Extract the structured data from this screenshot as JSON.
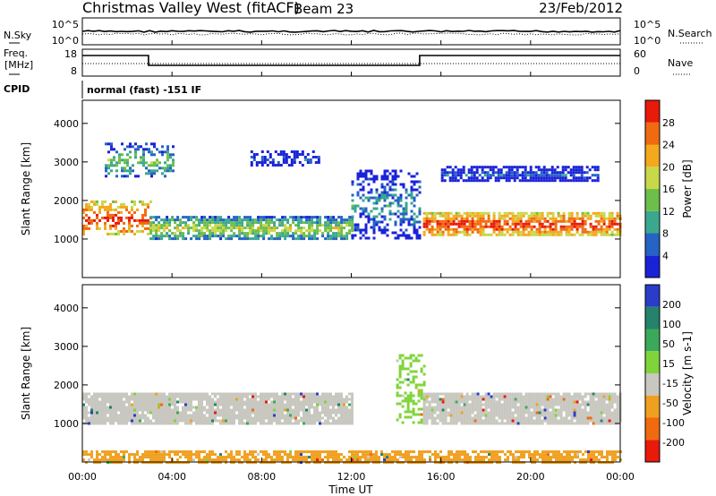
{
  "header": {
    "site": "Christmas Valley West (fitACF)",
    "beam": "Beam 23",
    "date": "23/Feb/2012"
  },
  "top_panels": {
    "noise": {
      "left_label": "N.Sky",
      "right_label": "N.Search",
      "left_ticks": [
        "10^5",
        "10^0"
      ],
      "right_ticks": [
        "10^5",
        "10^0"
      ]
    },
    "freq": {
      "left_label_1": "Freq.",
      "left_label_2": "[MHz]",
      "right_label": "Nave",
      "left_ticks": [
        "18",
        "8"
      ],
      "right_ticks": [
        "60",
        "0"
      ]
    },
    "cpid": {
      "label": "CPID",
      "text": "normal (fast) -151 IF"
    }
  },
  "chart_data": [
    {
      "type": "heatmap",
      "name": "power",
      "ylabel": "Slant Range [km]",
      "ylim": [
        0,
        4600
      ],
      "yticks": [
        "1000",
        "2000",
        "3000",
        "4000"
      ],
      "xlim": [
        "00:00",
        "24:00"
      ],
      "colorbar_label": "Power [dB]",
      "colorbar_ticks": [
        "4",
        "8",
        "12",
        "16",
        "20",
        "24",
        "28"
      ],
      "color_scale": [
        "#1a22d8",
        "#2563c4",
        "#3aa88f",
        "#6dbe4a",
        "#c8d84a",
        "#f4a81c",
        "#f06a10",
        "#e81a0a"
      ],
      "features": [
        {
          "hours": [
            0,
            3
          ],
          "range_km": [
            1100,
            2000
          ],
          "power_db": 28
        },
        {
          "hours": [
            3,
            12
          ],
          "range_km": [
            1000,
            1600
          ],
          "power_db": 16
        },
        {
          "hours": [
            1,
            4
          ],
          "range_km": [
            2600,
            3500
          ],
          "power_db": 12
        },
        {
          "hours": [
            7.5,
            10.5
          ],
          "range_km": [
            2900,
            3300
          ],
          "power_db": 6
        },
        {
          "hours": [
            12,
            15
          ],
          "range_km": [
            1000,
            2800
          ],
          "power_db": 8
        },
        {
          "hours": [
            15.2,
            24
          ],
          "range_km": [
            1100,
            1700
          ],
          "power_db": 28
        },
        {
          "hours": [
            16,
            23
          ],
          "range_km": [
            2500,
            2900
          ],
          "power_db": 5
        }
      ]
    },
    {
      "type": "heatmap",
      "name": "velocity",
      "ylabel": "Slant Range [km]",
      "ylim": [
        0,
        4600
      ],
      "yticks": [
        "1000",
        "2000",
        "3000",
        "4000"
      ],
      "xlim": [
        "00:00",
        "24:00"
      ],
      "colorbar_label": "Velocity [m s-1]",
      "colorbar_ticks": [
        "200",
        "100",
        "50",
        "15",
        "-15",
        "-50",
        "-100",
        "-200"
      ],
      "color_scale": [
        "#2a3cc8",
        "#24836a",
        "#3aaa5a",
        "#7fd43a",
        "#c8c8c0",
        "#f0a020",
        "#f06a10",
        "#e81a0a"
      ],
      "features": [
        {
          "hours": [
            0,
            12
          ],
          "range_km": [
            1000,
            1800
          ],
          "velocity": 0
        },
        {
          "hours": [
            14,
            15.2
          ],
          "range_km": [
            1000,
            2800
          ],
          "velocity": 30
        },
        {
          "hours": [
            15.2,
            24
          ],
          "range_km": [
            1000,
            1800
          ],
          "velocity": 0
        },
        {
          "hours": [
            0,
            24
          ],
          "range_km": [
            0,
            300
          ],
          "velocity": -60
        }
      ]
    }
  ],
  "axis": {
    "x_ticks": [
      "00:00",
      "04:00",
      "08:00",
      "12:00",
      "16:00",
      "20:00",
      "00:00"
    ],
    "xlabel": "Time UT"
  },
  "colors": {
    "background_scatter": "#ffffff",
    "ground_scatter": "#c8c8c0",
    "axis": "#000000"
  }
}
